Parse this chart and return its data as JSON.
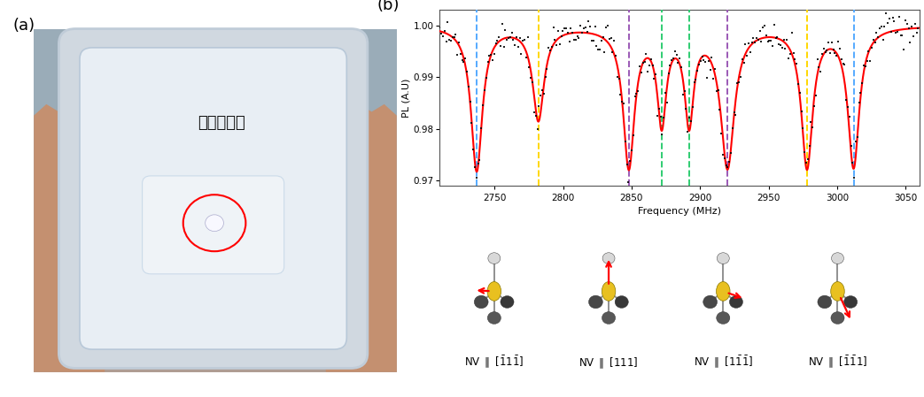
{
  "title_a": "(a)",
  "title_b": "(b)",
  "diamond_label": "다이아돈드",
  "xlabel": "Frequency (MHz)",
  "ylabel": "PL (A.U)",
  "xlim": [
    2710,
    3060
  ],
  "ylim": [
    0.969,
    1.003
  ],
  "yticks": [
    0.97,
    0.98,
    0.99,
    1.0
  ],
  "xticks": [
    2750,
    2800,
    2850,
    2900,
    2950,
    3000,
    3050
  ],
  "dip_centers": [
    2737,
    2782,
    2848,
    2872,
    2892,
    2920,
    2978,
    3012
  ],
  "dip_widths": [
    10,
    10,
    10,
    8,
    8,
    12,
    10,
    10
  ],
  "dip_depths": [
    0.028,
    0.018,
    0.027,
    0.018,
    0.018,
    0.027,
    0.027,
    0.027
  ],
  "vlines": [
    {
      "x": 2737,
      "color": "#55aaff"
    },
    {
      "x": 2782,
      "color": "#FFD700"
    },
    {
      "x": 2848,
      "color": "#9B59B6"
    },
    {
      "x": 2872,
      "color": "#2ECC71"
    },
    {
      "x": 2892,
      "color": "#2ECC71"
    },
    {
      "x": 2920,
      "color": "#9B59B6"
    },
    {
      "x": 2978,
      "color": "#FFD700"
    },
    {
      "x": 3012,
      "color": "#55aaff"
    }
  ],
  "bg_color": "#ffffff",
  "noise_seed": 42,
  "fit_color": "#ff0000",
  "data_color": "#000000",
  "bar_labels_tex": [
    "NV $\\parallel$ $[\\bar{1}1\\bar{1}]$",
    "NV $\\parallel$ $[111]$",
    "NV $\\parallel$ $[1\\bar{1}\\bar{1}]$",
    "NV $\\parallel$ $[\\bar{1}\\bar{1}1]$"
  ],
  "photo_bg_color": "#9aacb8",
  "photo_hand_color": "#c49070",
  "photo_container_color": "#d0d8e0",
  "photo_inner_color": "#e8eef4",
  "photo_center_color": "#f0f4f8"
}
